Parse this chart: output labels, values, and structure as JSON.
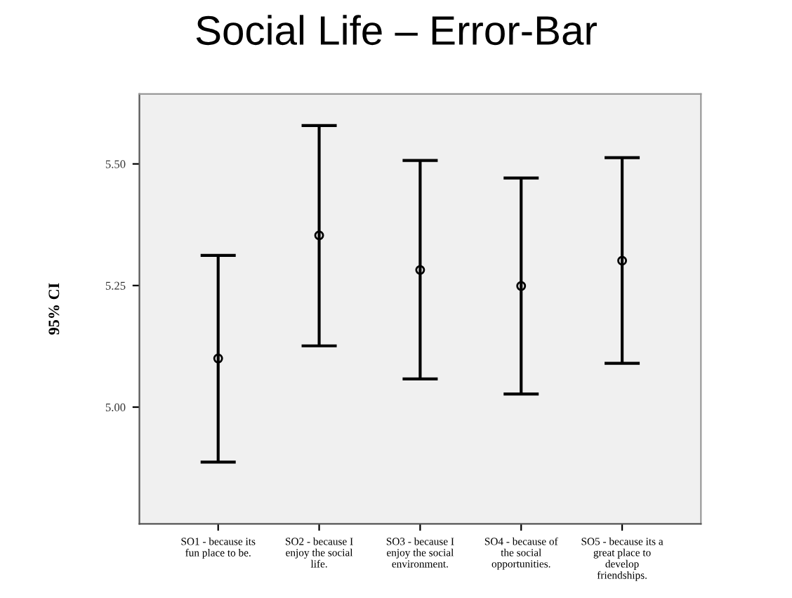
{
  "chart_data": {
    "type": "scatter",
    "title": "Social Life – Error-Bar",
    "ylabel": "95% CI",
    "categories": [
      "SO1 - because its\nfun place to be.",
      "SO2 - because I\nenjoy the social\nlife.",
      "SO3 - because I\nenjoy the social\nenvironment.",
      "SO4 - because of\nthe social\nopportunities.",
      "SO5 - because its a\ngreat place to\ndevelop\nfriendships."
    ],
    "series": [
      {
        "color": "#000000",
        "values": [
          5.1,
          5.353,
          5.282,
          5.249,
          5.301
        ],
        "errors": [
          [
            4.887,
            5.312
          ],
          [
            5.126,
            5.579
          ],
          [
            5.058,
            5.507
          ],
          [
            5.027,
            5.471
          ],
          [
            5.09,
            5.513
          ]
        ]
      }
    ],
    "ylim": [
      4.76,
      5.644
    ],
    "yticks": [
      {
        "value": 5.0,
        "label": "5.00"
      },
      {
        "value": 5.25,
        "label": "5.25"
      },
      {
        "value": 5.5,
        "label": "5.50"
      }
    ],
    "marker": "circle",
    "grid": false,
    "legend": false
  }
}
